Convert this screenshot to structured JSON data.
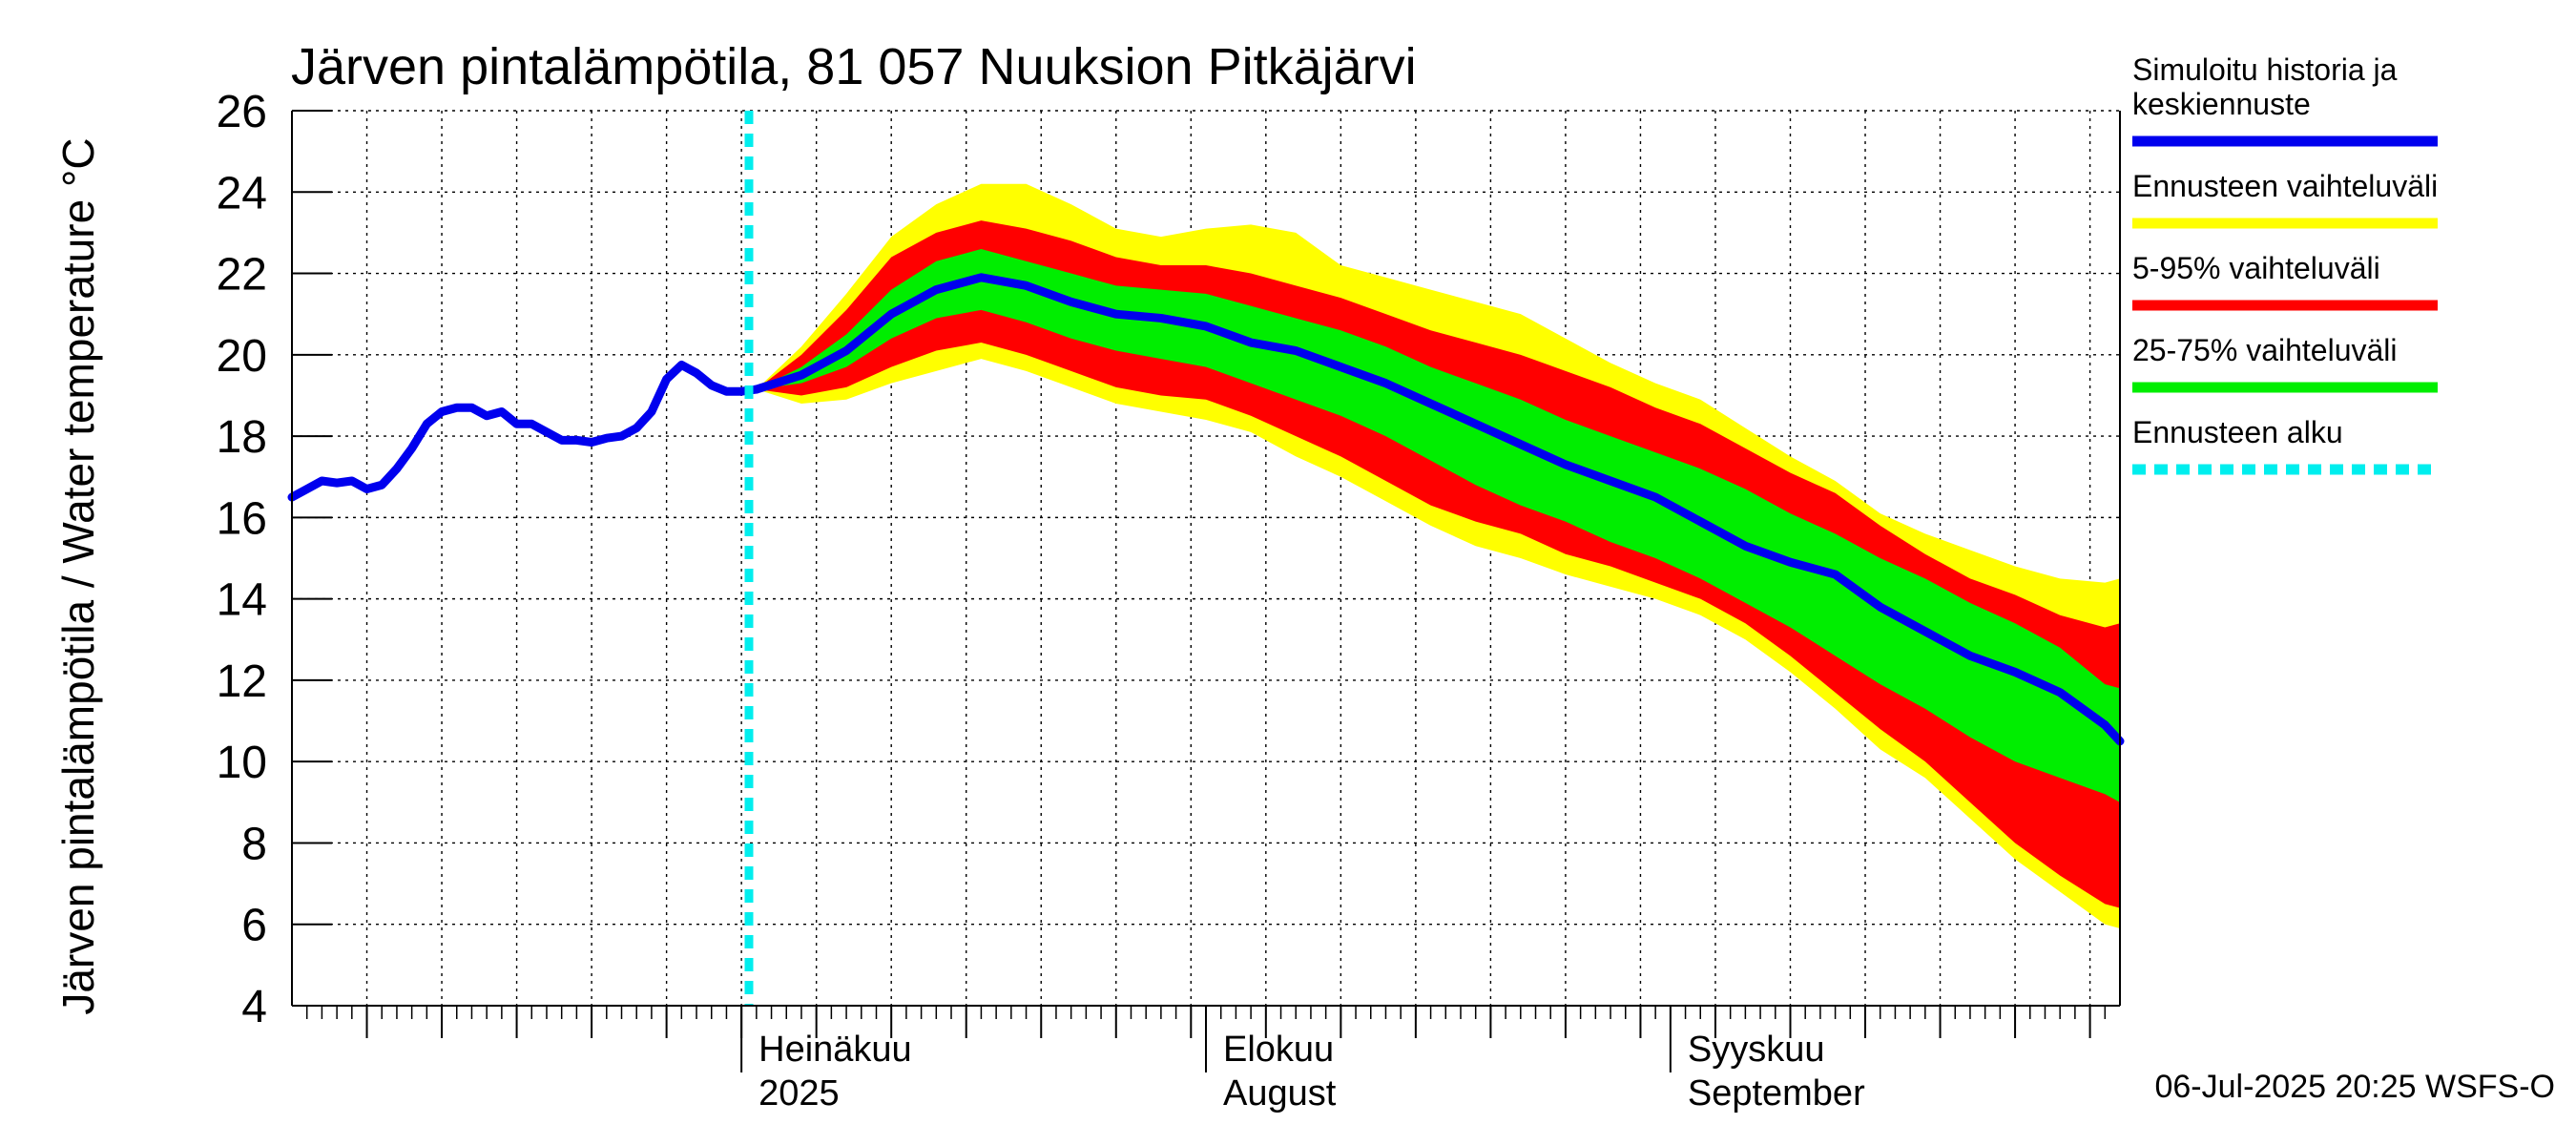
{
  "chart_data": {
    "type": "area",
    "title": "Järven pintalämpötila, 81 057 Nuuksion Pitkäjärvi",
    "ylabel": "Järven pintalämpötila / Water temperature °C",
    "xlabel": "",
    "ylim": [
      4,
      26
    ],
    "yticks": [
      4,
      6,
      8,
      10,
      12,
      14,
      16,
      18,
      20,
      22,
      24,
      26
    ],
    "x_unit": "days since 2025-06-01",
    "xlim": [
      0,
      122
    ],
    "month_labels": [
      {
        "day": 30,
        "line1": "Heinäkuu",
        "line2": "2025"
      },
      {
        "day": 61,
        "line1": "Elokuu",
        "line2": "August"
      },
      {
        "day": 92,
        "line1": "Syyskuu",
        "line2": "September"
      }
    ],
    "forecast_start_day": 30.5,
    "history": {
      "name": "Simuloitu historia ja keskiennuste",
      "x": [
        0,
        1,
        2,
        3,
        4,
        5,
        6,
        7,
        8,
        9,
        10,
        11,
        12,
        13,
        14,
        15,
        16,
        17,
        18,
        19,
        20,
        21,
        22,
        23,
        24,
        25,
        26,
        27,
        28,
        29,
        30,
        31
      ],
      "y": [
        16.5,
        16.7,
        16.9,
        16.85,
        16.9,
        16.7,
        16.8,
        17.2,
        17.7,
        18.3,
        18.6,
        18.7,
        18.7,
        18.5,
        18.6,
        18.3,
        18.3,
        18.1,
        17.9,
        17.9,
        17.85,
        17.95,
        18.0,
        18.2,
        18.6,
        19.4,
        19.75,
        19.55,
        19.25,
        19.1,
        19.1,
        19.15
      ]
    },
    "forecast_x": [
      31,
      34,
      37,
      40,
      43,
      46,
      49,
      52,
      55,
      58,
      61,
      64,
      67,
      70,
      73,
      76,
      79,
      82,
      85,
      88,
      91,
      94,
      97,
      100,
      103,
      106,
      109,
      112,
      115,
      118,
      121,
      122
    ],
    "median": [
      19.15,
      19.5,
      20.1,
      21.0,
      21.6,
      21.9,
      21.7,
      21.3,
      21.0,
      20.9,
      20.7,
      20.3,
      20.1,
      19.7,
      19.3,
      18.8,
      18.3,
      17.8,
      17.3,
      16.9,
      16.5,
      15.9,
      15.3,
      14.9,
      14.6,
      13.8,
      13.2,
      12.6,
      12.2,
      11.7,
      10.9,
      10.5
    ],
    "p25": [
      19.15,
      19.3,
      19.7,
      20.4,
      20.9,
      21.1,
      20.8,
      20.4,
      20.1,
      19.9,
      19.7,
      19.3,
      18.9,
      18.5,
      18.0,
      17.4,
      16.8,
      16.3,
      15.9,
      15.4,
      15.0,
      14.5,
      13.9,
      13.3,
      12.6,
      11.9,
      11.3,
      10.6,
      10.0,
      9.6,
      9.2,
      9.0
    ],
    "p75": [
      19.15,
      19.7,
      20.5,
      21.6,
      22.3,
      22.6,
      22.3,
      22.0,
      21.7,
      21.6,
      21.5,
      21.2,
      20.9,
      20.6,
      20.2,
      19.7,
      19.3,
      18.9,
      18.4,
      18.0,
      17.6,
      17.2,
      16.7,
      16.1,
      15.6,
      15.0,
      14.5,
      13.9,
      13.4,
      12.8,
      11.9,
      11.8
    ],
    "p5": [
      19.15,
      19.0,
      19.2,
      19.7,
      20.1,
      20.3,
      20.0,
      19.6,
      19.2,
      19.0,
      18.9,
      18.5,
      18.0,
      17.5,
      16.9,
      16.3,
      15.9,
      15.6,
      15.1,
      14.8,
      14.4,
      14.0,
      13.4,
      12.6,
      11.7,
      10.8,
      10.0,
      9.0,
      8.0,
      7.2,
      6.5,
      6.4
    ],
    "p95": [
      19.15,
      20.0,
      21.1,
      22.4,
      23.0,
      23.3,
      23.1,
      22.8,
      22.4,
      22.2,
      22.2,
      22.0,
      21.7,
      21.4,
      21.0,
      20.6,
      20.3,
      20.0,
      19.6,
      19.2,
      18.7,
      18.3,
      17.7,
      17.1,
      16.6,
      15.8,
      15.1,
      14.5,
      14.1,
      13.6,
      13.3,
      13.4
    ],
    "min": [
      19.15,
      18.8,
      18.9,
      19.3,
      19.6,
      19.9,
      19.6,
      19.2,
      18.8,
      18.6,
      18.4,
      18.1,
      17.5,
      17.0,
      16.4,
      15.8,
      15.3,
      15.0,
      14.6,
      14.3,
      14.0,
      13.6,
      13.0,
      12.2,
      11.3,
      10.3,
      9.6,
      8.6,
      7.6,
      6.8,
      6.0,
      5.9
    ],
    "max": [
      19.15,
      20.2,
      21.5,
      22.9,
      23.7,
      24.2,
      24.2,
      23.7,
      23.1,
      22.9,
      23.1,
      23.2,
      23.0,
      22.2,
      21.9,
      21.6,
      21.3,
      21.0,
      20.4,
      19.8,
      19.3,
      18.9,
      18.2,
      17.5,
      16.9,
      16.1,
      15.6,
      15.2,
      14.8,
      14.5,
      14.4,
      14.5
    ],
    "legend": [
      {
        "label_lines": [
          "Simuloitu historia ja",
          "keskiennuste"
        ],
        "color": "#0000ee",
        "style": "solid"
      },
      {
        "label_lines": [
          "Ennusteen vaihteluväli"
        ],
        "color": "#ffff00",
        "style": "solid"
      },
      {
        "label_lines": [
          "5-95% vaihteluväli"
        ],
        "color": "#ff0000",
        "style": "solid"
      },
      {
        "label_lines": [
          "25-75% vaihteluväli"
        ],
        "color": "#00ee00",
        "style": "solid"
      },
      {
        "label_lines": [
          "Ennusteen alku"
        ],
        "color": "#00eeee",
        "style": "dashed"
      }
    ],
    "legend_position": "right",
    "footer": "06-Jul-2025 20:25 WSFS-O",
    "grid": true
  }
}
